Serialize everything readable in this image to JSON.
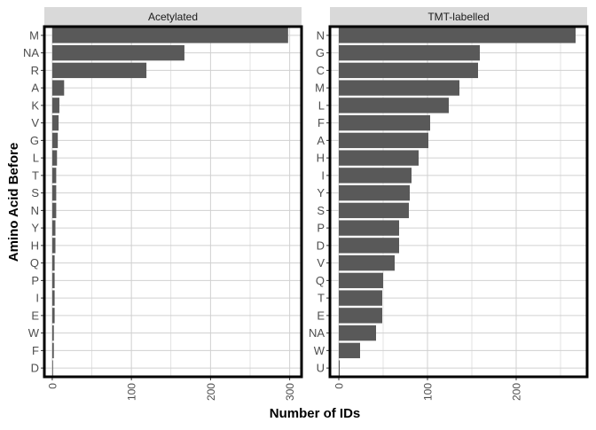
{
  "figure": {
    "ylabel": "Amino Acid Before",
    "xlabel": "Number of IDs"
  },
  "chart_data": [
    {
      "type": "bar",
      "orientation": "horizontal",
      "title": "Acetylated",
      "xlabel": "Number of IDs",
      "ylabel": "Amino Acid Before",
      "categories": [
        "M",
        "NA",
        "R",
        "A",
        "K",
        "V",
        "G",
        "L",
        "T",
        "S",
        "N",
        "Y",
        "H",
        "Q",
        "P",
        "I",
        "E",
        "W",
        "F",
        "D"
      ],
      "values": [
        298,
        167,
        119,
        15,
        9,
        8,
        7,
        6,
        5,
        5,
        5,
        4,
        4,
        3,
        3,
        3,
        3,
        2,
        2,
        1
      ],
      "xlim": [
        -10,
        315
      ],
      "xticks": [
        0,
        100,
        200,
        300
      ],
      "grid": true,
      "bar_color": "#595959"
    },
    {
      "type": "bar",
      "orientation": "horizontal",
      "title": "TMT-labelled",
      "xlabel": "Number of IDs",
      "ylabel": "Amino Acid Before",
      "categories": [
        "N",
        "G",
        "C",
        "M",
        "L",
        "F",
        "A",
        "H",
        "I",
        "Y",
        "S",
        "P",
        "D",
        "V",
        "Q",
        "T",
        "E",
        "NA",
        "W",
        "U"
      ],
      "values": [
        267,
        159,
        157,
        136,
        124,
        103,
        101,
        90,
        82,
        80,
        79,
        68,
        68,
        63,
        50,
        49,
        49,
        42,
        24,
        1
      ],
      "xlim": [
        -10,
        280
      ],
      "xticks": [
        0,
        100,
        200
      ],
      "grid": true,
      "bar_color": "#595959"
    }
  ]
}
